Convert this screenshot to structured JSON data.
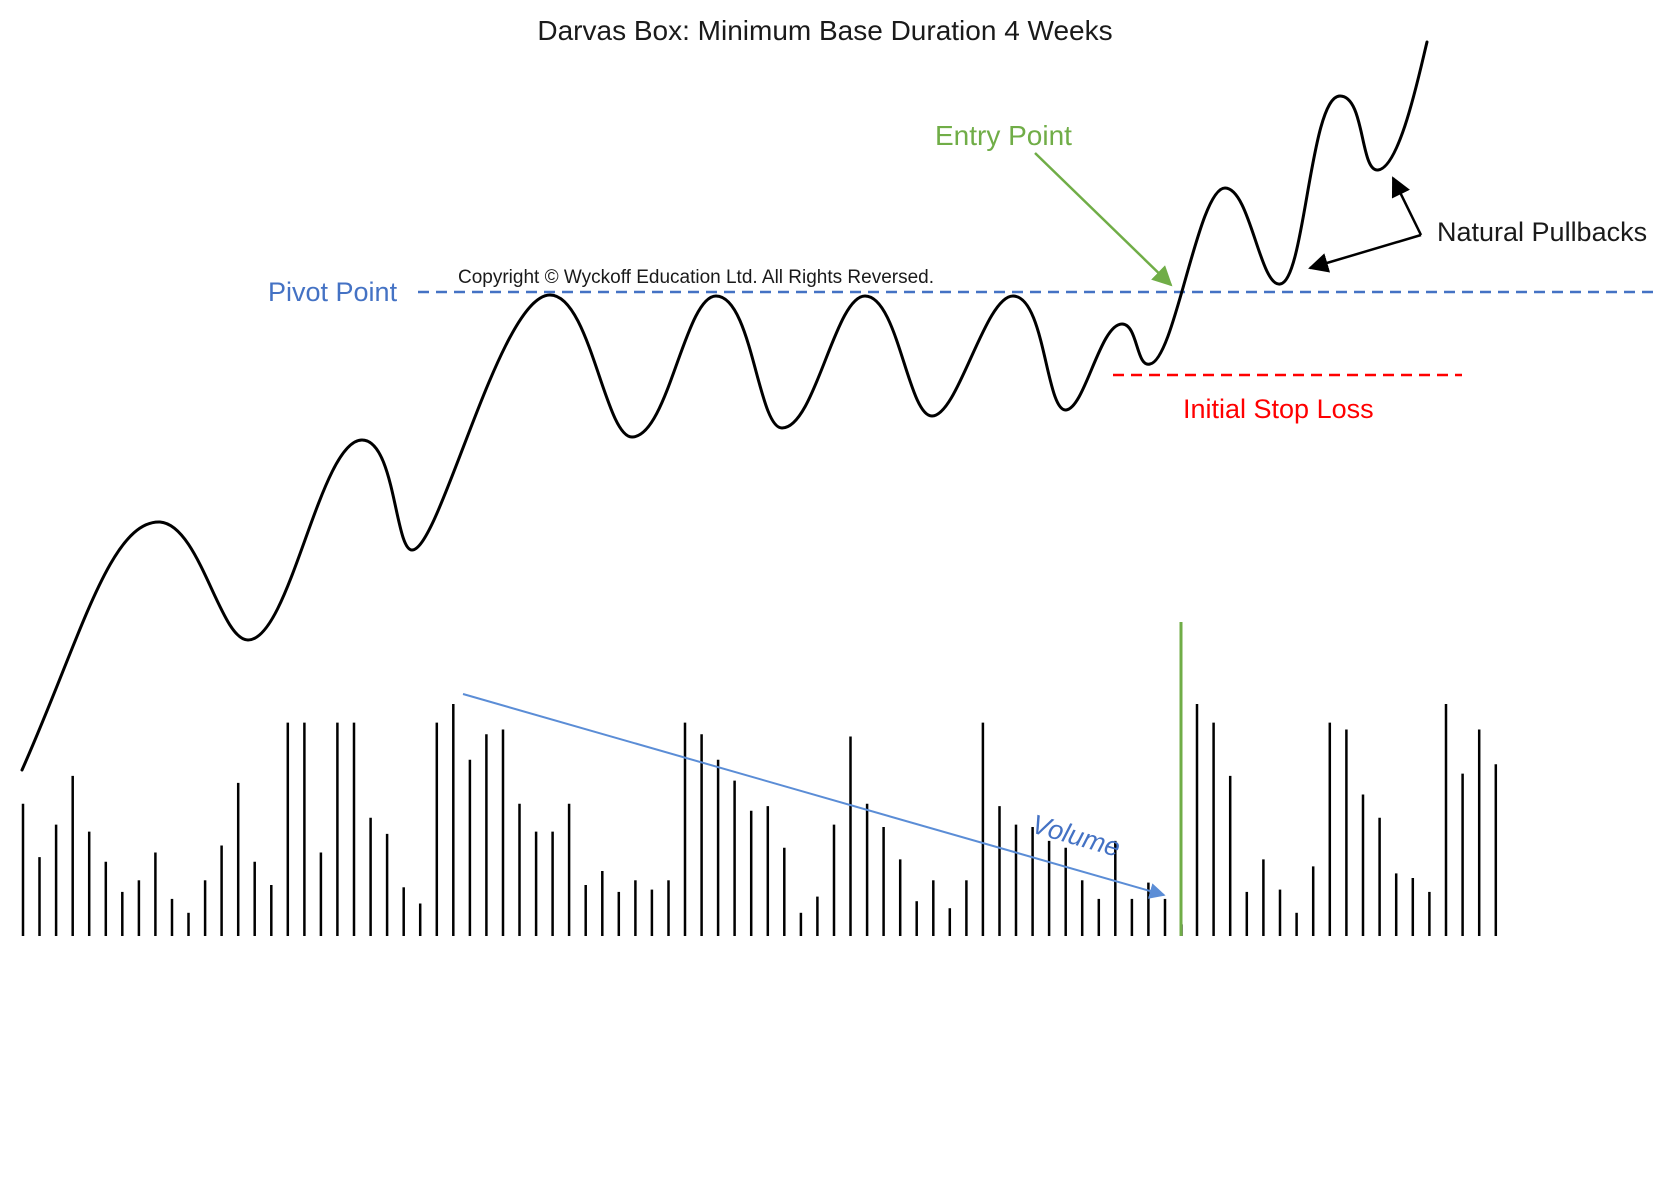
{
  "title": "Darvas Box: Minimum Base Duration 4 Weeks",
  "copyright": "Copyright © Wyckoff Education Ltd. All Rights Reversed.",
  "labels": {
    "pivot_point": "Pivot Point",
    "entry_point": "Entry Point",
    "initial_stop_loss": "Initial Stop Loss",
    "natural_pullbacks": "Natural Pullbacks",
    "volume": "Volume"
  },
  "colors": {
    "price_line": "#000000",
    "pivot": "#4472c4",
    "entry": "#70ad47",
    "stop_loss": "#ff0000",
    "volume_trend": "#5b8dd6",
    "volume_bars": "#000000",
    "breakout_volume": "#70ad47",
    "annotation": "#1a1a1a"
  },
  "volume_bar_levels": [
    0.57,
    0.34,
    0.48,
    0.69,
    0.45,
    0.32,
    0.19,
    0.24,
    0.36,
    0.16,
    0.1,
    0.24,
    0.39,
    0.66,
    0.32,
    0.22,
    0.92,
    0.92,
    0.36,
    0.92,
    0.92,
    0.51,
    0.44,
    0.21,
    0.14,
    0.92,
    1.0,
    0.76,
    0.87,
    0.89,
    0.57,
    0.45,
    0.45,
    0.57,
    0.22,
    0.28,
    0.19,
    0.24,
    0.2,
    0.24,
    0.92,
    0.87,
    0.76,
    0.67,
    0.54,
    0.56,
    0.38,
    0.1,
    0.17,
    0.48,
    0.86,
    0.57,
    0.47,
    0.33,
    0.15,
    0.24,
    0.12,
    0.24,
    0.92,
    0.56,
    0.48,
    0.47,
    0.41,
    0.38,
    0.24,
    0.16,
    0.41,
    0.16,
    0.23,
    0.16,
    0.05,
    1.0,
    0.92,
    0.69,
    0.19,
    0.33,
    0.2,
    0.1,
    0.3,
    0.92,
    0.89,
    0.61,
    0.51,
    0.27,
    0.25,
    0.19,
    1.0,
    0.7,
    0.89,
    0.74
  ]
}
